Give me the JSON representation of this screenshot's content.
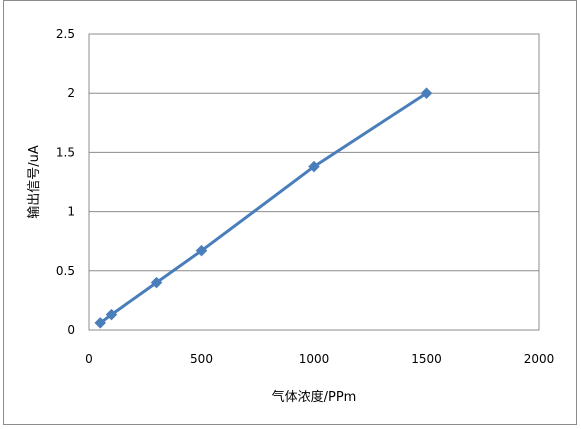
{
  "chart_data": {
    "type": "scatter",
    "title": "",
    "xlabel": "气体浓度/PPm",
    "ylabel": "输出信号/uA",
    "xlim": [
      0,
      2000
    ],
    "ylim": [
      0,
      2.5
    ],
    "x_ticks": [
      "0",
      "500",
      "1000",
      "1500",
      "2000"
    ],
    "y_ticks": [
      "0",
      "0.5",
      "1",
      "1.5",
      "2",
      "2.5"
    ],
    "grid": "horizontal",
    "legend": "none",
    "series": [
      {
        "color": "#4a7ebb",
        "marker": "diamond",
        "line": true,
        "x": [
          50,
          100,
          300,
          500,
          1000,
          1500
        ],
        "y": [
          0.06,
          0.13,
          0.4,
          0.67,
          1.38,
          2.0
        ]
      }
    ]
  }
}
